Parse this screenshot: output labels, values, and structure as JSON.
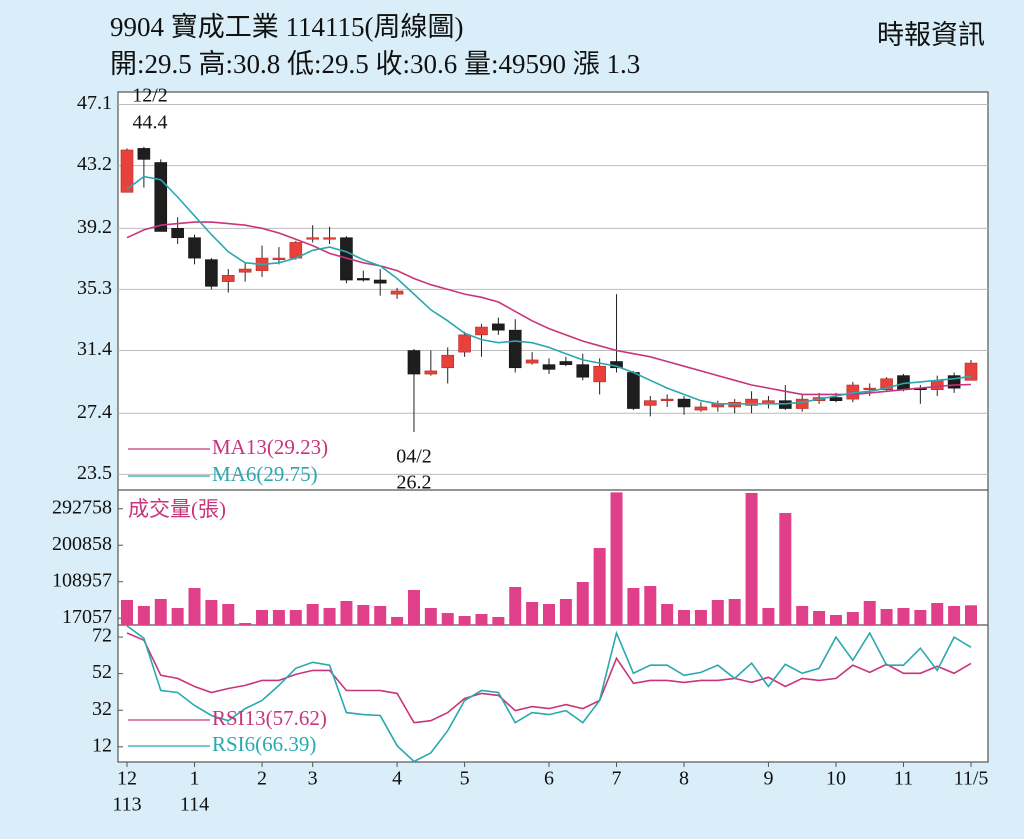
{
  "chart_data": [
    {
      "type": "candlestick",
      "title": "9904  寶成工業 114115(周線圖)",
      "subtitle": "開:29.5 高:30.8 低:29.5 收:30.6 量:49590 漲 1.3",
      "source": "時報資訊",
      "categories": [
        "12",
        null,
        null,
        null,
        "1",
        null,
        null,
        null,
        "2",
        null,
        null,
        "3",
        null,
        null,
        null,
        null,
        "4",
        null,
        null,
        null,
        "5",
        null,
        null,
        null,
        null,
        "6",
        null,
        null,
        null,
        "7",
        null,
        null,
        null,
        "8",
        null,
        null,
        null,
        null,
        "9",
        null,
        null,
        null,
        "10",
        null,
        null,
        null,
        "11",
        null,
        null,
        null,
        "11/5"
      ],
      "year_labels": [
        "113",
        null,
        null,
        null,
        "114",
        null,
        null,
        null,
        null,
        null,
        null,
        null,
        null,
        null,
        null,
        null,
        null,
        null,
        null,
        null,
        null,
        null,
        null,
        null,
        null,
        null,
        null,
        null,
        null,
        null,
        null,
        null,
        null,
        null,
        null,
        null,
        null,
        null,
        null,
        null,
        null,
        null,
        null,
        null,
        null,
        null,
        null,
        null,
        null,
        null,
        null
      ],
      "open": [
        41.5,
        44.3,
        43.4,
        39.2,
        38.6,
        37.2,
        35.8,
        36.4,
        36.5,
        37.2,
        37.3,
        38.6,
        38.6,
        38.6,
        36.0,
        35.9,
        35.0,
        31.4,
        29.9,
        30.3,
        31.3,
        32.4,
        33.1,
        32.7,
        30.6,
        30.5,
        30.7,
        30.5,
        29.4,
        30.7,
        30.0,
        27.9,
        28.2,
        28.3,
        27.6,
        27.8,
        27.8,
        27.9,
        28.0,
        28.2,
        27.7,
        28.2,
        28.4,
        28.3,
        28.9,
        28.9,
        29.8,
        29.0,
        28.9,
        29.8,
        29.5
      ],
      "high": [
        44.3,
        44.4,
        43.6,
        39.9,
        38.8,
        37.3,
        36.6,
        37.0,
        38.1,
        38.0,
        38.4,
        39.4,
        39.3,
        38.7,
        36.5,
        36.6,
        35.4,
        31.5,
        31.4,
        31.6,
        32.6,
        33.1,
        33.5,
        33.4,
        31.3,
        30.9,
        31.0,
        31.2,
        30.9,
        35.0,
        30.1,
        28.5,
        28.6,
        28.5,
        28.1,
        28.2,
        28.3,
        28.8,
        28.5,
        29.2,
        28.6,
        28.7,
        28.7,
        29.4,
        29.3,
        29.7,
        29.9,
        29.2,
        29.8,
        30.0,
        30.8
      ],
      "low": [
        41.5,
        41.8,
        39.0,
        38.2,
        36.9,
        35.3,
        35.1,
        35.8,
        36.1,
        36.9,
        37.2,
        38.3,
        38.2,
        35.7,
        35.8,
        34.9,
        34.7,
        26.2,
        29.8,
        29.3,
        31.0,
        31.0,
        32.4,
        30.0,
        30.5,
        29.9,
        30.4,
        29.5,
        28.6,
        30.0,
        27.6,
        27.2,
        27.8,
        27.3,
        27.5,
        27.5,
        27.4,
        27.4,
        27.7,
        27.6,
        27.5,
        28.0,
        28.1,
        28.1,
        28.5,
        28.8,
        28.8,
        28.0,
        28.5,
        28.7,
        29.5
      ],
      "close": [
        44.2,
        43.6,
        39.0,
        38.6,
        37.3,
        35.5,
        36.2,
        36.6,
        37.3,
        37.3,
        38.3,
        38.6,
        38.6,
        35.9,
        35.9,
        35.7,
        35.2,
        29.9,
        30.1,
        31.1,
        32.4,
        32.9,
        32.7,
        30.3,
        30.8,
        30.2,
        30.5,
        29.7,
        30.4,
        30.3,
        27.7,
        28.2,
        28.3,
        27.8,
        27.8,
        28.0,
        28.1,
        28.3,
        28.2,
        27.7,
        28.3,
        28.4,
        28.2,
        29.2,
        29.0,
        29.6,
        28.9,
        28.9,
        29.5,
        29.0,
        30.6
      ],
      "up_color": "#e8413c",
      "down_color": "#1e1e1e",
      "series": [
        {
          "name": "MA13(29.23)",
          "color": "#c8357a",
          "values": [
            38.6,
            39.1,
            39.4,
            39.5,
            39.6,
            39.6,
            39.5,
            39.4,
            39.2,
            38.9,
            38.5,
            38.1,
            37.6,
            37.3,
            37.0,
            36.8,
            36.5,
            36.0,
            35.6,
            35.3,
            35.0,
            34.8,
            34.5,
            33.9,
            33.3,
            32.8,
            32.4,
            32.0,
            31.7,
            31.4,
            31.2,
            31.0,
            30.7,
            30.4,
            30.1,
            29.8,
            29.5,
            29.2,
            29.0,
            28.8,
            28.6,
            28.6,
            28.6,
            28.6,
            28.7,
            28.8,
            28.9,
            29.0,
            29.1,
            29.2,
            29.23
          ]
        },
        {
          "name": "MA6(29.75)",
          "color": "#2aa8b0",
          "values": [
            41.7,
            42.5,
            42.3,
            41.2,
            40.0,
            38.8,
            37.7,
            37.0,
            36.9,
            37.0,
            37.3,
            37.8,
            38.0,
            37.7,
            37.2,
            36.8,
            36.0,
            35.0,
            34.0,
            33.3,
            32.5,
            32.1,
            31.9,
            32.0,
            31.9,
            31.6,
            31.2,
            30.8,
            30.6,
            30.4,
            30.0,
            29.5,
            29.0,
            28.6,
            28.2,
            28.0,
            28.0,
            28.0,
            28.0,
            28.0,
            28.1,
            28.3,
            28.5,
            28.7,
            28.8,
            29.0,
            29.3,
            29.4,
            29.5,
            29.6,
            29.75
          ]
        }
      ],
      "annotations": [
        {
          "date": "12/2",
          "price": "44.4"
        },
        {
          "date": "04/2",
          "price": "26.2"
        }
      ],
      "ylim": [
        22.5,
        47.9
      ],
      "yticks": [
        23.5,
        27.4,
        31.4,
        35.3,
        39.2,
        43.2,
        47.1
      ],
      "grid": true
    },
    {
      "type": "bar",
      "label": "成交量(張)",
      "color": "#e0408a",
      "values": [
        63000,
        47900,
        65500,
        42800,
        93200,
        63000,
        52900,
        5000,
        37800,
        37800,
        37800,
        52900,
        42800,
        60500,
        50400,
        47900,
        20200,
        88200,
        42800,
        30200,
        22700,
        27700,
        20200,
        95700,
        57900,
        52900,
        65500,
        108300,
        194000,
        334000,
        93200,
        98200,
        52900,
        37800,
        37800,
        63000,
        65500,
        332500,
        42800,
        282100,
        47900,
        35300,
        25200,
        32700,
        60500,
        40300,
        42800,
        37800,
        55400,
        47900,
        49590
      ],
      "ylim": [
        0,
        340000
      ],
      "yticks": [
        17057,
        108957,
        200858,
        292758
      ]
    },
    {
      "type": "line",
      "series": [
        {
          "name": "RSI13(57.62)",
          "color": "#c8357a",
          "values": [
            74.2,
            70.3,
            51.1,
            49.4,
            45.0,
            41.7,
            43.9,
            45.6,
            48.3,
            48.3,
            51.6,
            53.8,
            53.8,
            42.8,
            42.8,
            42.8,
            41.2,
            25.2,
            26.3,
            30.7,
            38.4,
            41.2,
            40.1,
            31.8,
            34.0,
            32.9,
            35.1,
            32.9,
            37.3,
            60.4,
            46.7,
            48.3,
            48.3,
            47.2,
            48.3,
            48.3,
            49.4,
            47.2,
            50.0,
            45.0,
            49.4,
            48.3,
            49.4,
            56.6,
            52.7,
            57.1,
            52.2,
            52.2,
            56.0,
            52.2,
            57.62
          ]
        },
        {
          "name": "RSI6(66.39)",
          "color": "#2aa8b0",
          "values": [
            78.1,
            71.4,
            42.8,
            41.7,
            34.6,
            29.1,
            26.3,
            32.9,
            37.3,
            45.6,
            54.9,
            58.2,
            56.6,
            30.7,
            29.6,
            29.1,
            12.6,
            4.0,
            8.7,
            20.8,
            37.3,
            42.8,
            41.7,
            25.2,
            30.7,
            29.6,
            31.8,
            25.2,
            37.3,
            74.2,
            52.2,
            56.6,
            56.6,
            51.1,
            52.7,
            56.6,
            49.4,
            57.7,
            45.0,
            57.1,
            52.2,
            54.9,
            72.0,
            59.3,
            74.2,
            56.6,
            56.6,
            65.9,
            53.8,
            72.0,
            66.39
          ]
        }
      ],
      "ylim": [
        3.7,
        78.6
      ],
      "yticks": [
        12,
        32,
        52,
        72
      ]
    }
  ]
}
